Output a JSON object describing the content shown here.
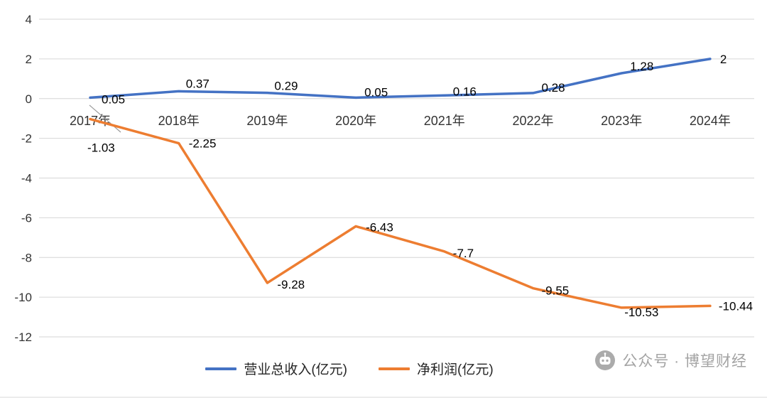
{
  "chart_data": {
    "type": "line",
    "title": "",
    "xlabel": "",
    "ylabel": "",
    "categories": [
      "2017年",
      "2018年",
      "2019年",
      "2020年",
      "2021年",
      "2022年",
      "2023年",
      "2024年"
    ],
    "series": [
      {
        "name": "营业总收入(亿元)",
        "color": "#4472C4",
        "values": [
          0.05,
          0.37,
          0.29,
          0.05,
          0.16,
          0.28,
          1.28,
          2
        ]
      },
      {
        "name": "净利润(亿元)",
        "color": "#ED7D31",
        "values": [
          -1.03,
          -2.25,
          -9.28,
          -6.43,
          -7.7,
          -9.55,
          -10.53,
          -10.44
        ]
      }
    ],
    "y_ticks": [
      4,
      2,
      0,
      -2,
      -4,
      -6,
      -8,
      -10,
      -12
    ],
    "ylim": [
      -12,
      4
    ],
    "grid": true,
    "legend_position": "bottom"
  },
  "watermark": {
    "icon": "wechat-official-account-icon",
    "text": "公众号 · 博望财经"
  },
  "colors": {
    "gridline": "#d6d6d6",
    "axis_text": "#333333",
    "data_label": "#000000",
    "watermark_gray": "#a3a3a3"
  }
}
